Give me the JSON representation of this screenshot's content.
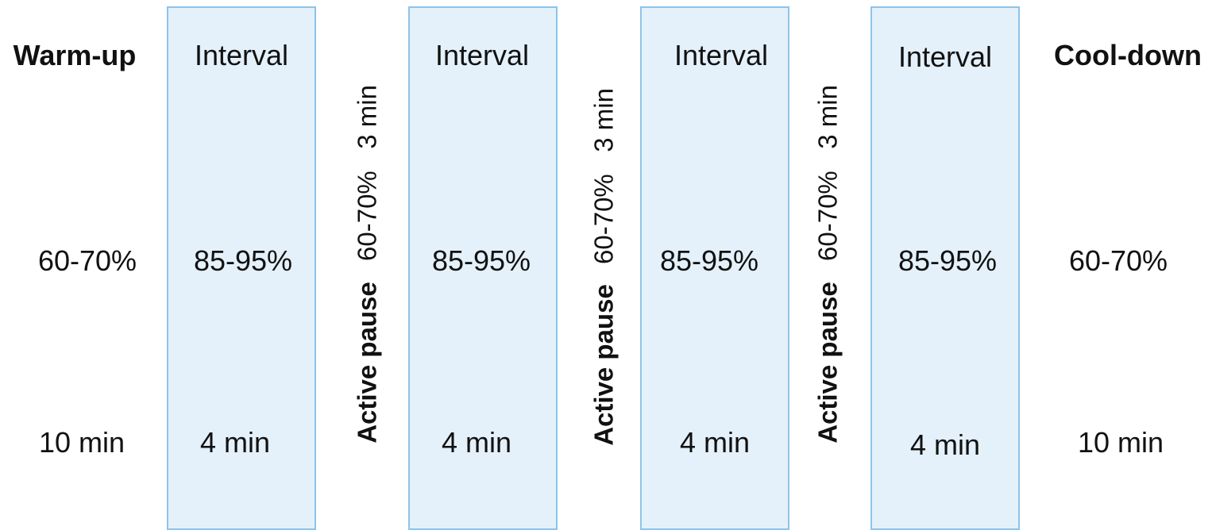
{
  "warmup": {
    "title": "Warm-up",
    "intensity": "60-70%",
    "duration": "10 min"
  },
  "intervals": [
    {
      "title": "Interval",
      "intensity": "85-95%",
      "duration": "4 min"
    },
    {
      "title": "Interval",
      "intensity": "85-95%",
      "duration": "4 min"
    },
    {
      "title": "Interval",
      "intensity": "85-95%",
      "duration": "4 min"
    },
    {
      "title": "Interval",
      "intensity": "85-95%",
      "duration": "4 min"
    }
  ],
  "pauses": [
    {
      "title": "Active pause",
      "detail": "60-70%   3 min"
    },
    {
      "title": "Active pause",
      "detail": "60-70%   3 min"
    },
    {
      "title": "Active pause",
      "detail": "60-70%   3 min"
    }
  ],
  "cooldown": {
    "title": "Cool-down",
    "intensity": "60-70%",
    "duration": "10 min"
  },
  "colors": {
    "interval_fill": "#e4f1fb",
    "interval_border": "#8ec3ea"
  }
}
